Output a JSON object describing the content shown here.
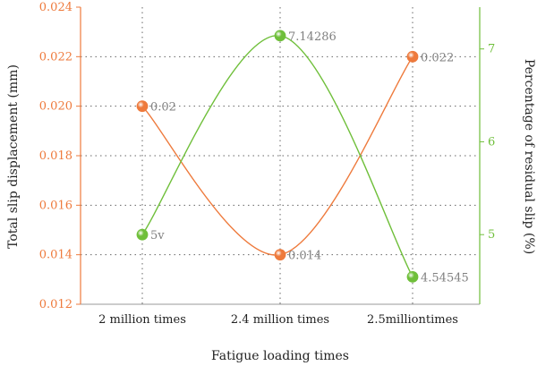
{
  "chart_data": {
    "type": "line",
    "categories": [
      "2 million times",
      "2.4 million times",
      "2.5milliontimes"
    ],
    "xlabel": "Fatigue loading times",
    "ylabel_left": "Total slip displacement (mm)",
    "ylabel_right": "Percentage of residual slip (%)",
    "ylim_left": [
      0.012,
      0.024
    ],
    "yticks_left": [
      "0.012",
      "0.014",
      "0.016",
      "0.018",
      "0.020",
      "0.022",
      "0.024"
    ],
    "ylim_right": [
      4.25,
      7.45
    ],
    "yticks_right": [
      "5",
      "6",
      "7"
    ],
    "grid": true,
    "series": [
      {
        "axis": "left",
        "color": "#ee7a3c",
        "values": [
          0.02,
          0.014,
          0.022
        ],
        "labels": [
          "0.02",
          "0.014",
          "0.022"
        ]
      },
      {
        "axis": "right",
        "color": "#6fbf3a",
        "values": [
          5.0,
          7.14286,
          4.54545
        ],
        "labels": [
          "5v",
          "7.14286",
          "4.54545"
        ]
      }
    ]
  }
}
